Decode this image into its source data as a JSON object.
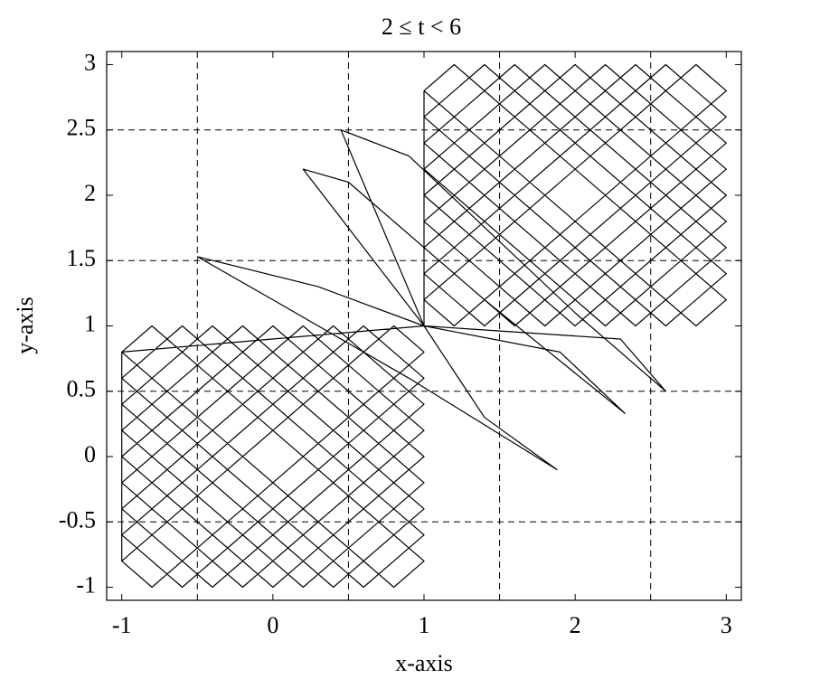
{
  "chart_data": {
    "type": "line",
    "title": "2 ≤ t < 6",
    "x_label": "x-axis",
    "y_label": "y-axis",
    "xlim": [
      -1.1,
      3.1
    ],
    "ylim": [
      -1.1,
      3.1
    ],
    "xticks": [
      -1,
      0,
      1,
      2,
      3
    ],
    "yticks": [
      -1,
      -0.5,
      0,
      0.5,
      1,
      1.5,
      2,
      2.5,
      3
    ],
    "xgrid": [
      -0.5,
      0.5,
      1.5,
      2.5
    ],
    "ygrid": [
      -0.5,
      0.5,
      1.5,
      2.5
    ],
    "series": [
      {
        "color": "#000000",
        "x": [
          -1,
          0.8,
          1,
          -0.8,
          -1,
          -1,
          0.6,
          1,
          -0.6,
          -1,
          -1,
          0.4,
          1,
          -0.4,
          -1,
          -1,
          0.2,
          1,
          -0.2,
          -1,
          -1,
          0,
          1,
          0,
          -1,
          -1,
          -0.2,
          1,
          0.2,
          -1,
          -1,
          -0.4,
          1,
          0.4,
          -1,
          -1,
          -0.6,
          1,
          0.6,
          -1,
          -1,
          -0.8,
          1,
          0.8,
          -1,
          1,
          0.3,
          -0.5,
          0,
          0.9,
          1.88,
          1.4,
          1,
          0.2,
          0.5,
          1.4,
          2.33,
          1.9,
          1,
          0.45,
          0.9,
          2.0,
          2.6,
          2.3,
          1,
          1,
          2.8,
          3,
          1.2,
          1,
          1,
          2.6,
          3,
          1.4,
          1,
          1,
          2.4,
          3,
          1.6,
          1,
          1,
          2.2,
          3,
          1.8,
          1,
          1,
          2,
          3,
          2,
          1,
          1,
          1.8,
          3,
          2.2,
          1,
          1,
          1.6,
          3,
          2.4,
          1,
          1,
          1.4,
          3,
          2.6,
          1,
          1,
          1.2,
          3,
          2.8,
          1
        ],
        "values": [
          -0.8,
          1,
          0.8,
          -1,
          -0.8,
          -0.6,
          1,
          0.6,
          -1,
          -0.6,
          -0.4,
          1,
          0.4,
          -1,
          -0.4,
          -0.2,
          1,
          0.2,
          -1,
          -0.2,
          0,
          1,
          0,
          -1,
          0,
          0.2,
          1,
          -0.2,
          -1,
          0.2,
          0.4,
          1,
          -0.4,
          -1,
          0.4,
          0.6,
          1,
          -0.6,
          -1,
          0.6,
          0.8,
          1,
          -0.8,
          -1,
          0.8,
          1,
          1.3,
          1.53,
          1.2,
          0.6,
          -0.1,
          0.3,
          1,
          2.2,
          2.1,
          1.2,
          0.33,
          0.8,
          1,
          2.5,
          2.3,
          1.1,
          0.5,
          0.9,
          1,
          1.2,
          3,
          2.8,
          1,
          1.2,
          1.4,
          3,
          2.6,
          1,
          1.4,
          1.6,
          3,
          2.4,
          1,
          1.6,
          1.8,
          3,
          2.2,
          1,
          1.8,
          2,
          3,
          2,
          1,
          2,
          2.2,
          3,
          1.8,
          1,
          2.2,
          2.4,
          3,
          1.6,
          1,
          2.4,
          2.6,
          3,
          1.4,
          1,
          2.6,
          2.8,
          3,
          1.2,
          1,
          2.8
        ]
      }
    ]
  }
}
